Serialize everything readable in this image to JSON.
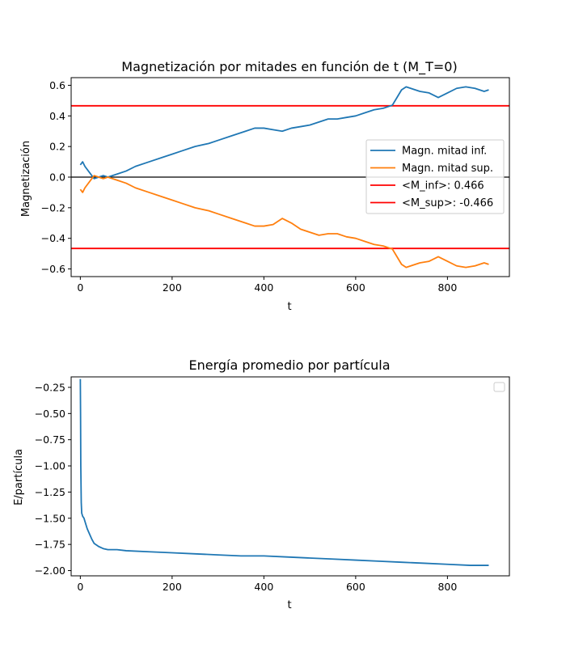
{
  "chart_data": [
    {
      "type": "line",
      "title": "Magnetización por mitades en función de t (M_T=0)",
      "xlabel": "t",
      "ylabel": "Magnetización",
      "xlim": [
        -20,
        935
      ],
      "ylim": [
        -0.65,
        0.65
      ],
      "xticks": [
        0,
        200,
        400,
        600,
        800
      ],
      "xtick_labels": [
        "0",
        "200",
        "400",
        "600",
        "800"
      ],
      "yticks": [
        0.6,
        0.4,
        0.2,
        0.0,
        -0.2,
        -0.4,
        -0.6
      ],
      "ytick_labels": [
        "0.6",
        "0.4",
        "0.2",
        "0.0",
        "−0.2",
        "−0.4",
        "−0.6"
      ],
      "grid": false,
      "legend_position": "center-right",
      "series": [
        {
          "name": "Magn. mitad inf.",
          "color": "#1f77b4",
          "x": [
            0,
            5,
            10,
            20,
            30,
            40,
            50,
            60,
            70,
            80,
            100,
            120,
            150,
            180,
            200,
            220,
            250,
            280,
            300,
            330,
            360,
            380,
            400,
            420,
            440,
            460,
            480,
            500,
            520,
            540,
            560,
            580,
            600,
            620,
            640,
            660,
            680,
            690,
            700,
            710,
            720,
            740,
            760,
            780,
            800,
            820,
            840,
            860,
            880,
            890
          ],
          "y": [
            0.08,
            0.1,
            0.07,
            0.03,
            -0.01,
            0.0,
            0.01,
            0.0,
            0.01,
            0.02,
            0.04,
            0.07,
            0.1,
            0.13,
            0.15,
            0.17,
            0.2,
            0.22,
            0.24,
            0.27,
            0.3,
            0.32,
            0.32,
            0.31,
            0.3,
            0.32,
            0.33,
            0.34,
            0.36,
            0.38,
            0.38,
            0.39,
            0.4,
            0.42,
            0.44,
            0.45,
            0.47,
            0.52,
            0.57,
            0.59,
            0.58,
            0.56,
            0.55,
            0.52,
            0.55,
            0.58,
            0.59,
            0.58,
            0.56,
            0.57
          ]
        },
        {
          "name": "Magn. mitad sup.",
          "color": "#ff7f0e",
          "x": [
            0,
            5,
            10,
            20,
            30,
            40,
            50,
            60,
            70,
            80,
            100,
            120,
            150,
            180,
            200,
            220,
            250,
            280,
            300,
            330,
            360,
            380,
            400,
            420,
            440,
            460,
            480,
            500,
            520,
            540,
            560,
            580,
            600,
            620,
            640,
            660,
            680,
            690,
            700,
            710,
            720,
            740,
            760,
            780,
            800,
            820,
            840,
            860,
            880,
            890
          ],
          "y": [
            -0.08,
            -0.1,
            -0.07,
            -0.03,
            0.01,
            0.0,
            -0.01,
            0.0,
            -0.01,
            -0.02,
            -0.04,
            -0.07,
            -0.1,
            -0.13,
            -0.15,
            -0.17,
            -0.2,
            -0.22,
            -0.24,
            -0.27,
            -0.3,
            -0.32,
            -0.32,
            -0.31,
            -0.27,
            -0.3,
            -0.34,
            -0.36,
            -0.38,
            -0.37,
            -0.37,
            -0.39,
            -0.4,
            -0.42,
            -0.44,
            -0.45,
            -0.47,
            -0.52,
            -0.57,
            -0.59,
            -0.58,
            -0.56,
            -0.55,
            -0.52,
            -0.55,
            -0.58,
            -0.59,
            -0.58,
            -0.56,
            -0.57
          ]
        },
        {
          "name": "<M_inf>: 0.466",
          "color": "#ff0000",
          "kind": "hline",
          "y": 0.466
        },
        {
          "name": "<M_sup>: -0.466",
          "color": "#ff0000",
          "kind": "hline",
          "y": -0.466
        },
        {
          "kind": "hline",
          "color": "#000000",
          "y": 0.0
        }
      ]
    },
    {
      "type": "line",
      "title": "Energía promedio por partícula",
      "xlabel": "t",
      "ylabel": "E/partícula",
      "xlim": [
        -20,
        935
      ],
      "ylim": [
        -2.05,
        -0.15
      ],
      "xticks": [
        0,
        200,
        400,
        600,
        800
      ],
      "xtick_labels": [
        "0",
        "200",
        "400",
        "600",
        "800"
      ],
      "yticks": [
        -0.25,
        -0.5,
        -0.75,
        -1.0,
        -1.25,
        -1.5,
        -1.75,
        -2.0
      ],
      "ytick_labels": [
        "−0.25",
        "−0.50",
        "−0.75",
        "−1.00",
        "−1.25",
        "−1.50",
        "−1.75",
        "−2.00"
      ],
      "grid": false,
      "legend_position": "top-right",
      "series": [
        {
          "color": "#1f77b4",
          "x": [
            0,
            0.5,
            1,
            2,
            3,
            5,
            8,
            10,
            15,
            20,
            25,
            30,
            40,
            50,
            60,
            80,
            100,
            150,
            200,
            250,
            300,
            350,
            400,
            450,
            500,
            550,
            600,
            650,
            700,
            750,
            800,
            850,
            890
          ],
          "y": [
            -0.17,
            -0.5,
            -1.0,
            -1.35,
            -1.45,
            -1.48,
            -1.5,
            -1.53,
            -1.6,
            -1.65,
            -1.7,
            -1.74,
            -1.77,
            -1.79,
            -1.8,
            -1.8,
            -1.81,
            -1.82,
            -1.83,
            -1.84,
            -1.85,
            -1.86,
            -1.86,
            -1.87,
            -1.88,
            -1.89,
            -1.9,
            -1.91,
            -1.92,
            -1.93,
            -1.94,
            -1.95,
            -1.95
          ]
        }
      ]
    }
  ]
}
